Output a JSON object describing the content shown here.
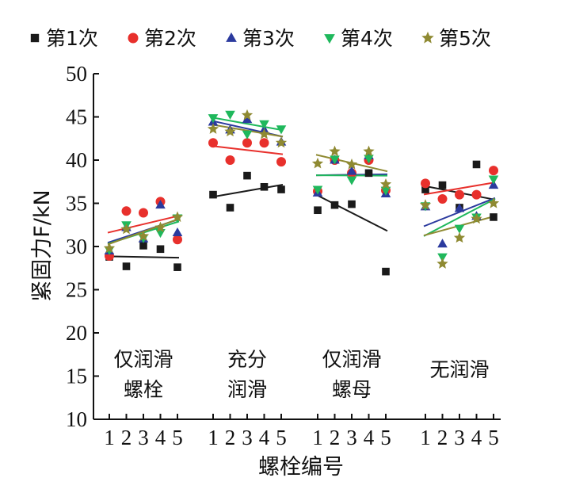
{
  "chart_data": {
    "type": "scatter",
    "ylabel": "紧固力F/kN",
    "xlabel": "螺栓编号",
    "ylim": [
      10,
      50
    ],
    "yticks": [
      10,
      15,
      20,
      25,
      30,
      35,
      40,
      45,
      50
    ],
    "bolt_numbers": [
      "1",
      "2",
      "3",
      "4",
      "5"
    ],
    "groups": [
      {
        "label_line1": "仅润滑",
        "label_line2": "螺栓"
      },
      {
        "label_line1": "充分",
        "label_line2": "润滑"
      },
      {
        "label_line1": "仅润滑",
        "label_line2": "螺母"
      },
      {
        "label_line1": "无润滑",
        "label_line2": ""
      }
    ],
    "legend_position": "top",
    "trendlines": true,
    "series": [
      {
        "name": "第1次",
        "marker": "square",
        "color": "#1a1a1a",
        "values": [
          [
            28.8,
            27.7,
            30.1,
            29.7,
            27.6
          ],
          [
            36.0,
            34.5,
            38.2,
            36.9,
            36.6
          ],
          [
            34.2,
            34.8,
            34.9,
            38.5,
            27.1
          ],
          [
            36.6,
            37.1,
            34.5,
            39.5,
            33.4
          ]
        ]
      },
      {
        "name": "第2次",
        "marker": "circle",
        "color": "#e8302c",
        "values": [
          [
            28.9,
            34.1,
            33.9,
            35.2,
            30.8
          ],
          [
            42.0,
            40.0,
            42.0,
            42.0,
            39.8
          ],
          [
            36.4,
            40.0,
            38.5,
            40.0,
            36.5
          ],
          [
            37.3,
            35.5,
            36.0,
            36.0,
            38.8
          ]
        ]
      },
      {
        "name": "第3次",
        "marker": "triangle-up",
        "color": "#2b3a9e",
        "values": [
          [
            29.5,
            32.2,
            30.9,
            34.8,
            31.6
          ],
          [
            44.4,
            43.5,
            44.7,
            43.5,
            42.1
          ],
          [
            36.2,
            40.0,
            38.7,
            40.5,
            36.1
          ],
          [
            34.6,
            30.3,
            34.4,
            33.5,
            37.1
          ]
        ]
      },
      {
        "name": "第4次",
        "marker": "triangle-down",
        "color": "#1fb85c",
        "values": [
          [
            29.6,
            32.5,
            31.0,
            31.6,
            33.3
          ],
          [
            44.9,
            45.3,
            43.0,
            44.2,
            43.6
          ],
          [
            36.6,
            40.1,
            37.7,
            40.2,
            36.5
          ],
          [
            34.7,
            28.8,
            32.1,
            33.4,
            37.8
          ]
        ]
      },
      {
        "name": "第5次",
        "marker": "star",
        "color": "#8f8a32",
        "values": [
          [
            29.8,
            32.0,
            31.2,
            32.2,
            33.4
          ],
          [
            43.6,
            43.3,
            45.2,
            43.0,
            42.0
          ],
          [
            39.6,
            41.0,
            39.5,
            41.0,
            37.2
          ],
          [
            34.8,
            28.0,
            31.0,
            33.2,
            35.0
          ]
        ]
      }
    ]
  }
}
